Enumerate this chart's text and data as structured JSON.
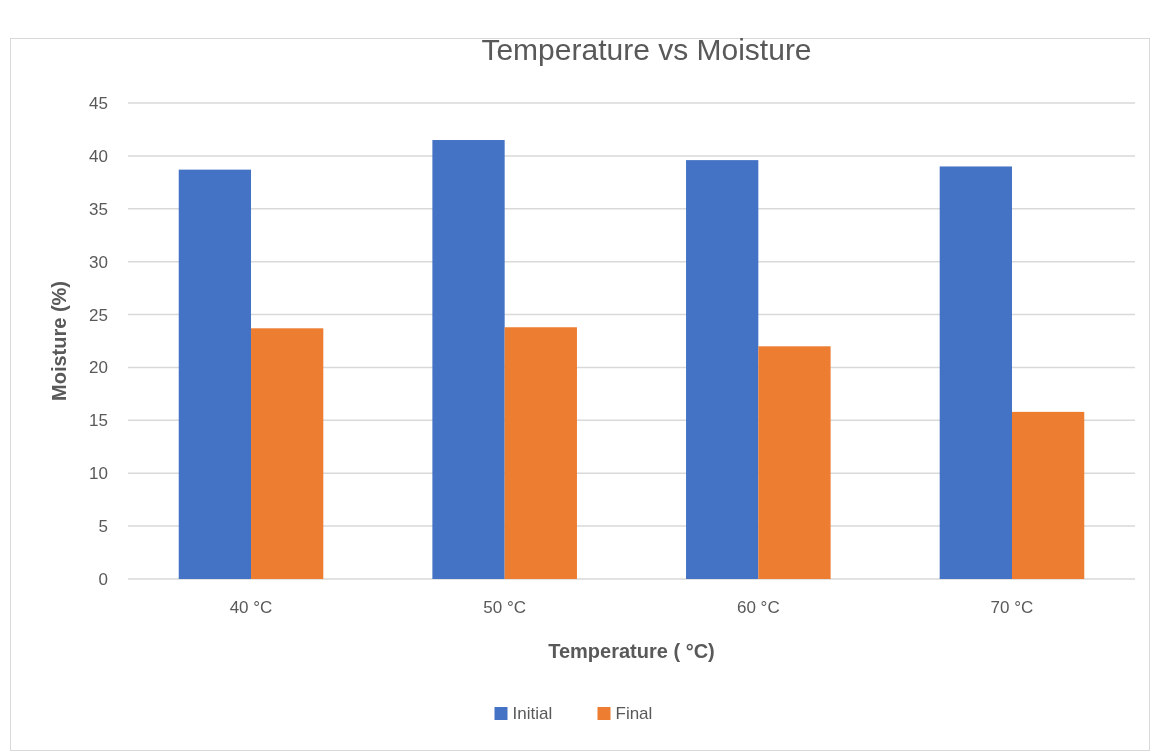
{
  "chart_data": {
    "type": "bar",
    "title": "Temperature vs Moisture",
    "xlabel": "Temperature ( °C)",
    "ylabel": "Moisture (%)",
    "categories": [
      "40 °C",
      "50 °C",
      "60 °C",
      "70 °C"
    ],
    "series": [
      {
        "name": "Initial",
        "color": "#4472c4",
        "values": [
          38.7,
          41.5,
          39.6,
          39.0
        ]
      },
      {
        "name": "Final",
        "color": "#ed7d31",
        "values": [
          23.7,
          23.8,
          22.0,
          15.8
        ]
      }
    ],
    "ylim": [
      0,
      45
    ],
    "yticks": [
      0,
      5,
      10,
      15,
      20,
      25,
      30,
      35,
      40,
      45
    ],
    "grid": "y",
    "legend": "bottom"
  }
}
